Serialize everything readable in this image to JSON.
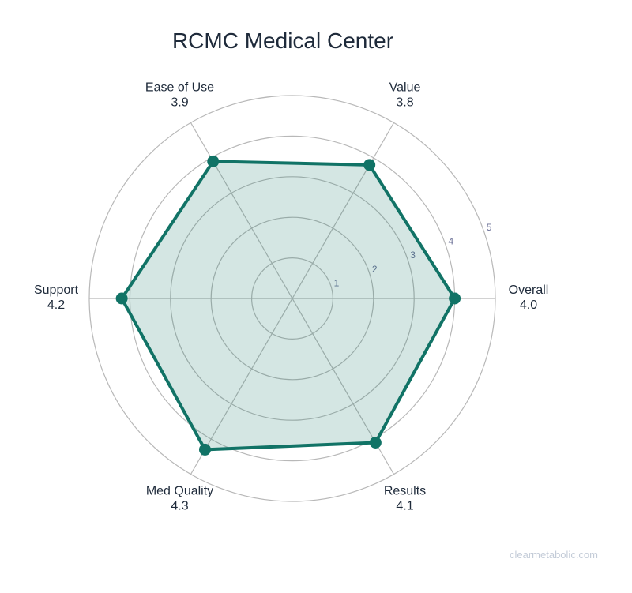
{
  "chart_data": {
    "type": "radar",
    "title": "RCMC Medical Center",
    "axes": [
      {
        "label": "Overall",
        "value": 4.0,
        "value_label": "4.0"
      },
      {
        "label": "Value",
        "value": 3.8,
        "value_label": "3.8"
      },
      {
        "label": "Ease of Use",
        "value": 3.9,
        "value_label": "3.9"
      },
      {
        "label": "Support",
        "value": 4.2,
        "value_label": "4.2"
      },
      {
        "label": "Med Quality",
        "value": 4.3,
        "value_label": "4.3"
      },
      {
        "label": "Results",
        "value": 4.1,
        "value_label": "4.1"
      }
    ],
    "radial_range": [
      0,
      5
    ],
    "radial_ticks": [
      "1",
      "2",
      "3",
      "4",
      "5"
    ],
    "grid": true,
    "colors": {
      "line": "#117366",
      "fill": "rgba(17,115,102,0.18)",
      "grid": "#b8b8b8"
    }
  },
  "watermark": "clearmetabolic.com"
}
